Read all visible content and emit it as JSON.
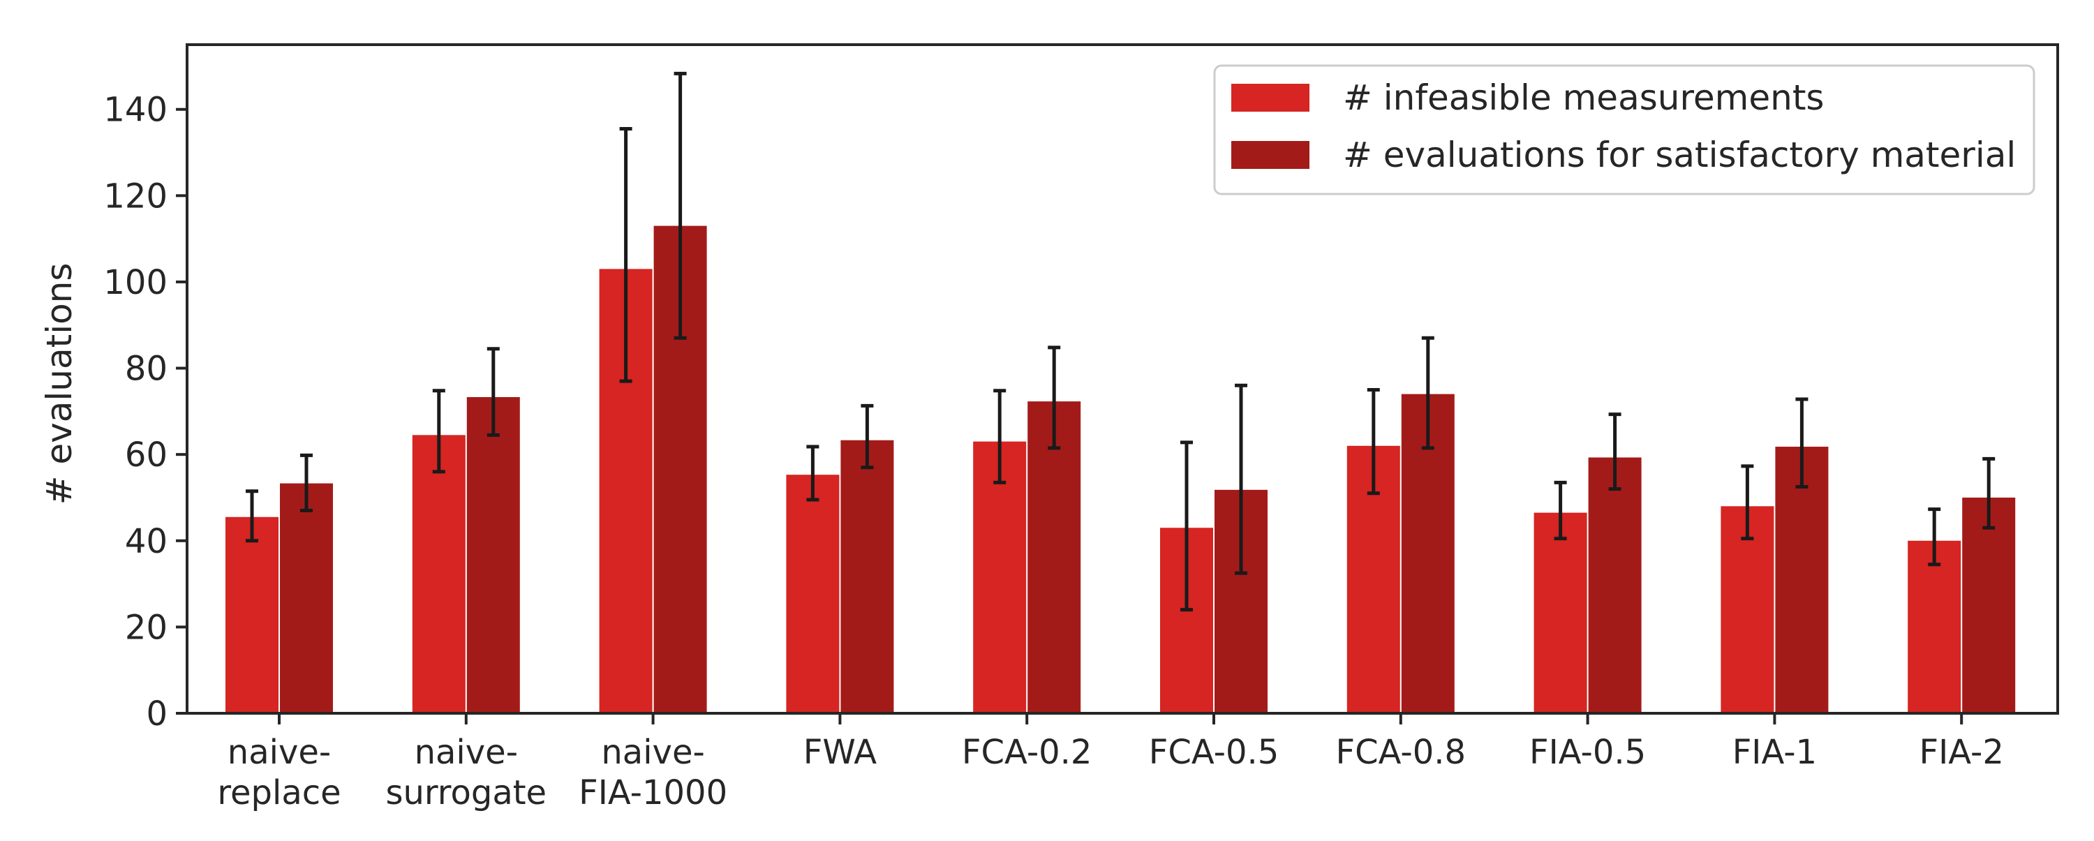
{
  "chart_data": {
    "type": "bar",
    "title": "",
    "xlabel": "",
    "ylabel": "# evaluations",
    "ylim": [
      0,
      155
    ],
    "yticks": [
      0,
      20,
      40,
      60,
      80,
      100,
      120,
      140
    ],
    "categories": [
      [
        "naive-",
        "replace"
      ],
      [
        "naive-",
        "surrogate"
      ],
      [
        "naive-",
        "FIA-1000"
      ],
      [
        "FWA"
      ],
      [
        "FCA-0.2"
      ],
      [
        "FCA-0.5"
      ],
      [
        "FCA-0.8"
      ],
      [
        "FIA-0.5"
      ],
      [
        "FIA-1"
      ],
      [
        "FIA-2"
      ]
    ],
    "series": [
      {
        "name": "# infeasible measurements",
        "color": "#d62522",
        "values": [
          45.5,
          64.5,
          103,
          55.3,
          63,
          43,
          62,
          46.5,
          48,
          40
        ],
        "err_low": [
          40,
          56,
          77,
          49.5,
          53.5,
          24,
          51,
          40.5,
          40.5,
          34.5
        ],
        "err_high": [
          51.5,
          74.8,
          135.5,
          61.8,
          74.8,
          62.8,
          75,
          53.5,
          57.3,
          47.3
        ]
      },
      {
        "name": "# evaluations for satisfactory material",
        "color": "#a31b19",
        "values": [
          53.3,
          73.3,
          113,
          63.3,
          72.3,
          51.8,
          74,
          59.3,
          61.8,
          50
        ],
        "err_low": [
          47,
          64.5,
          87,
          57,
          61.5,
          32.5,
          61.5,
          52,
          52.5,
          43
        ],
        "err_high": [
          59.8,
          84.5,
          148.3,
          71.3,
          84.8,
          76,
          87,
          69.3,
          72.8,
          59
        ]
      }
    ],
    "grid": false,
    "legend_position": "top-right"
  }
}
